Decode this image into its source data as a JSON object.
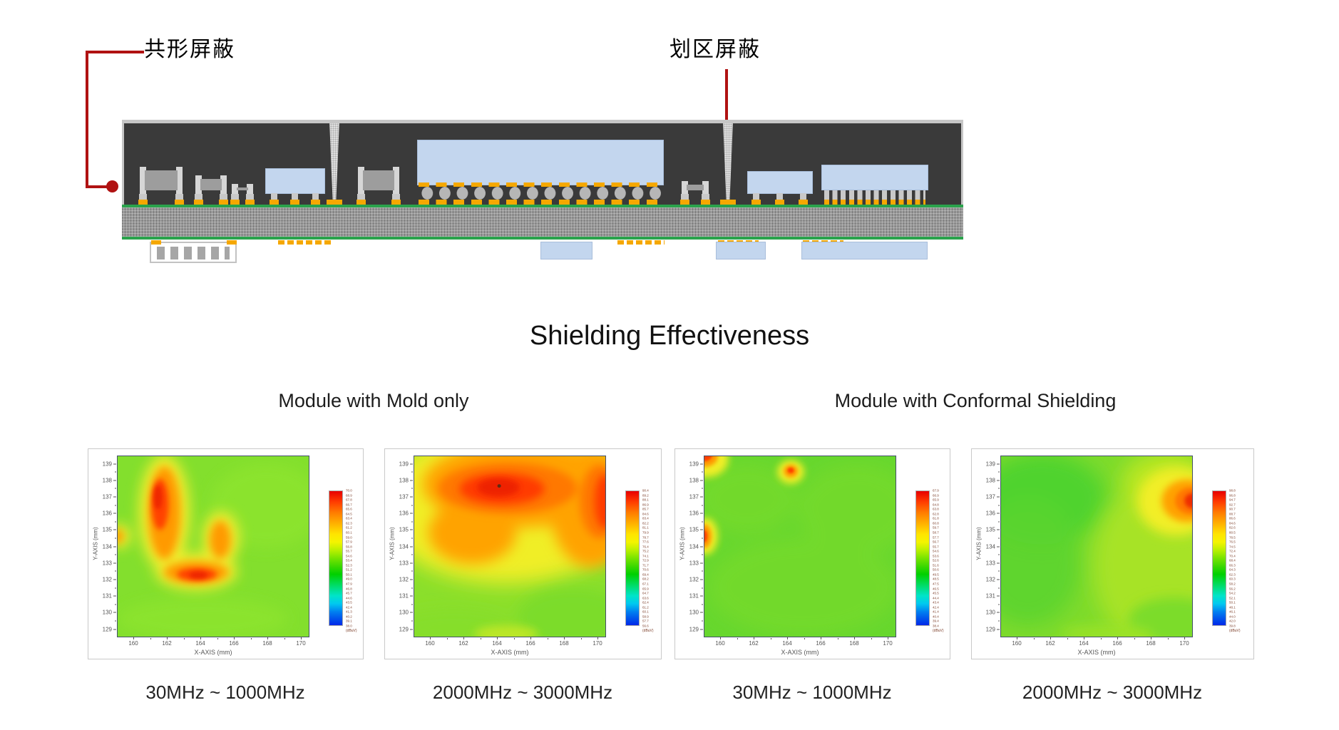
{
  "page": {
    "background": "#ffffff"
  },
  "diagram": {
    "labels": {
      "conformal": "共形屏蔽",
      "compartment": "划区屏蔽"
    },
    "colors": {
      "callout_red": "#b01212",
      "mold_compound": "#3a3a3a",
      "conformal_shield_gray": "#c6c6c6",
      "pcb_green": "#2aa34c",
      "pad_orange": "#f5a800",
      "die_blue": "#c3d6ee",
      "substrate_gray": "#9a9a9a"
    }
  },
  "section": {
    "title": "Shielding Effectiveness",
    "group_left": "Module with Mold only",
    "group_right": "Module with Conformal Shielding"
  },
  "heatmaps": {
    "ylabel": "Y-AXIS (mm)",
    "xlabel": "X-AXIS (mm)",
    "unit": "(dBuV)",
    "y_ticks": [
      "139",
      "138",
      "137",
      "136",
      "135",
      "134",
      "133",
      "132",
      "131",
      "130",
      "129"
    ],
    "x_ticks": [
      "160",
      "162",
      "164",
      "166",
      "168",
      "170"
    ],
    "panels": [
      {
        "id": "mold-30-1000",
        "caption": "30MHz ~ 1000MHz",
        "colorbar_ticks": [
          "70.0",
          "68.9",
          "67.8",
          "66.7",
          "65.6",
          "64.5",
          "63.4",
          "62.3",
          "61.2",
          "60.1",
          "59.0",
          "57.9",
          "56.8",
          "55.7",
          "54.6",
          "53.4",
          "52.3",
          "51.2",
          "50.1",
          "49.0",
          "47.9",
          "46.8",
          "45.7",
          "44.6",
          "43.5",
          "42.4",
          "41.3",
          "40.2",
          "39.1",
          "38.0"
        ]
      },
      {
        "id": "mold-2000-3000",
        "caption": "2000MHz ~ 3000MHz",
        "colorbar_ticks": [
          "90.4",
          "89.2",
          "88.1",
          "86.9",
          "85.7",
          "84.6",
          "83.4",
          "82.2",
          "81.1",
          "79.9",
          "78.7",
          "77.6",
          "76.4",
          "75.2",
          "74.1",
          "72.9",
          "71.7",
          "70.6",
          "69.4",
          "68.2",
          "67.1",
          "65.9",
          "64.7",
          "63.6",
          "62.4",
          "61.2",
          "60.1",
          "58.9",
          "57.7",
          "56.6"
        ]
      },
      {
        "id": "conformal-30-1000",
        "caption": "30MHz ~ 1000MHz",
        "colorbar_ticks": [
          "67.9",
          "66.9",
          "65.9",
          "64.8",
          "63.8",
          "62.8",
          "61.8",
          "60.8",
          "59.7",
          "58.7",
          "57.7",
          "56.7",
          "55.7",
          "54.6",
          "53.6",
          "52.6",
          "51.6",
          "50.6",
          "49.5",
          "48.5",
          "47.5",
          "46.5",
          "45.5",
          "44.4",
          "43.4",
          "42.4",
          "41.4",
          "40.4",
          "39.4",
          "38.4"
        ]
      },
      {
        "id": "conformal-2000-3000",
        "caption": "2000MHz ~ 3000MHz",
        "colorbar_ticks": [
          "98.8",
          "96.8",
          "94.7",
          "92.7",
          "90.7",
          "88.7",
          "86.6",
          "84.6",
          "82.6",
          "80.5",
          "78.5",
          "76.5",
          "74.5",
          "72.4",
          "70.4",
          "68.4",
          "66.3",
          "64.3",
          "62.3",
          "60.3",
          "58.2",
          "56.2",
          "54.2",
          "52.1",
          "50.1",
          "48.1",
          "46.1",
          "44.0",
          "42.0",
          "39.8"
        ]
      }
    ]
  },
  "chart_data": [
    {
      "type": "heatmap",
      "title": "Module with Mold only – 30MHz ~ 1000MHz",
      "xlabel": "X-AXIS (mm)",
      "ylabel": "Y-AXIS (mm)",
      "x_range": [
        159,
        170.5
      ],
      "y_range": [
        128.5,
        139.5
      ],
      "x_ticks": [
        160,
        162,
        164,
        166,
        168,
        170
      ],
      "y_ticks": [
        129,
        130,
        131,
        132,
        133,
        134,
        135,
        136,
        137,
        138,
        139
      ],
      "colorbar_unit": "dBuV",
      "colorbar_range": [
        38.0,
        70.0
      ],
      "legend_position": "right",
      "background_level": "≈55 dBuV (yellow-green)",
      "hotspots": [
        {
          "x": 161.5,
          "y": 136.8,
          "value": 69,
          "note": "top of C-shaped red-orange band"
        },
        {
          "x": 164.0,
          "y": 132.4,
          "value": 69,
          "note": "bottom arm of C shape"
        },
        {
          "x": 165.2,
          "y": 134.8,
          "value": 64,
          "note": "hook curling up to the right"
        },
        {
          "x": 159.2,
          "y": 134.6,
          "value": 62,
          "note": "small spur at left edge"
        }
      ],
      "pattern": "C/G-shaped high-emission region over left-center area on green background"
    },
    {
      "type": "heatmap",
      "title": "Module with Mold only – 2000MHz ~ 3000MHz",
      "xlabel": "X-AXIS (mm)",
      "ylabel": "Y-AXIS (mm)",
      "x_range": [
        159,
        170.5
      ],
      "y_range": [
        128.5,
        139.5
      ],
      "x_ticks": [
        160,
        162,
        164,
        166,
        168,
        170
      ],
      "y_ticks": [
        129,
        130,
        131,
        132,
        133,
        134,
        135,
        136,
        137,
        138,
        139
      ],
      "colorbar_unit": "dBuV",
      "colorbar_range": [
        56.6,
        90.4
      ],
      "legend_position": "right",
      "background_level": "gradient from ≈88 dBuV (top) to ≈65 dBuV (bottom)",
      "hotspots": [
        {
          "x": 164.3,
          "y": 137.4,
          "value": 90,
          "note": "red peak with small dark probe dot"
        },
        {
          "x": 170.0,
          "y": 136.5,
          "value": 87,
          "note": "hot streak at right edge"
        }
      ],
      "pattern": "broad hot orange-red band across upper half, cooling to green toward bottom"
    },
    {
      "type": "heatmap",
      "title": "Module with Conformal Shielding – 30MHz ~ 1000MHz",
      "xlabel": "X-AXIS (mm)",
      "ylabel": "Y-AXIS (mm)",
      "x_range": [
        159,
        170.5
      ],
      "y_range": [
        128.5,
        139.5
      ],
      "x_ticks": [
        160,
        162,
        164,
        166,
        168,
        170
      ],
      "y_ticks": [
        129,
        130,
        131,
        132,
        133,
        134,
        135,
        136,
        137,
        138,
        139
      ],
      "colorbar_unit": "dBuV",
      "colorbar_range": [
        38.4,
        67.9
      ],
      "legend_position": "right",
      "background_level": "≈52 dBuV (uniform green)",
      "hotspots": [
        {
          "x": 159.2,
          "y": 139.4,
          "value": 66,
          "note": "small spot in top-left corner"
        },
        {
          "x": 164.2,
          "y": 138.6,
          "value": 63,
          "note": "small orange diamond near top"
        },
        {
          "x": 159.2,
          "y": 134.7,
          "value": 64,
          "note": "orange blob at left edge"
        }
      ],
      "pattern": "nearly uniform green field with three small residual hotspots"
    },
    {
      "type": "heatmap",
      "title": "Module with Conformal Shielding – 2000MHz ~ 3000MHz",
      "xlabel": "X-AXIS (mm)",
      "ylabel": "Y-AXIS (mm)",
      "x_range": [
        159,
        170.5
      ],
      "y_range": [
        128.5,
        139.5
      ],
      "x_ticks": [
        160,
        162,
        164,
        166,
        168,
        170
      ],
      "y_ticks": [
        129,
        130,
        131,
        132,
        133,
        134,
        135,
        136,
        137,
        138,
        139
      ],
      "colorbar_unit": "dBuV",
      "colorbar_range": [
        39.8,
        98.8
      ],
      "legend_position": "right",
      "background_level": "green left half, yellow-green right half",
      "hotspots": [
        {
          "x": 170.0,
          "y": 136.7,
          "value": 95,
          "note": "single hot spot at right edge"
        }
      ],
      "pattern": "mostly green with one yellow-orange-red hotspot at the right edge"
    }
  ]
}
